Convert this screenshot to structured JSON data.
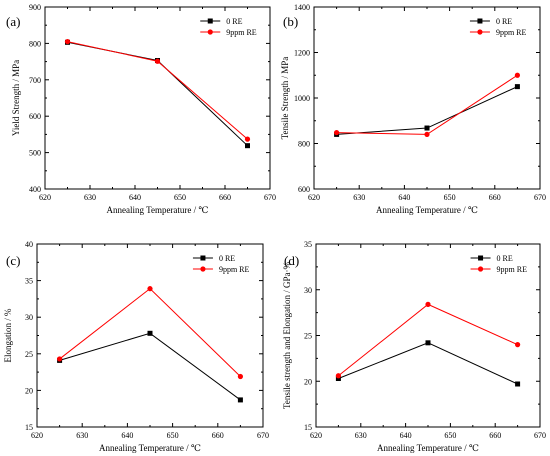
{
  "chart_data": [
    {
      "type": "line",
      "panel_label": "(a)",
      "xlabel": "Annealing Temperature / ℃",
      "ylabel": "Yield Strength / MPa",
      "xlim": [
        620,
        670
      ],
      "ylim": [
        400,
        900
      ],
      "xticks": [
        620,
        630,
        640,
        650,
        660,
        670
      ],
      "yticks": [
        400,
        500,
        600,
        700,
        800,
        900
      ],
      "legend_position": "top-right",
      "grid": false,
      "series": [
        {
          "name": "0 RE",
          "color": "#000000",
          "marker": "square",
          "x": [
            625,
            645,
            665
          ],
          "y": [
            803,
            753,
            519
          ]
        },
        {
          "name": "9ppm RE",
          "color": "#ff0000",
          "marker": "circle",
          "x": [
            625,
            645,
            665
          ],
          "y": [
            805,
            751,
            537
          ]
        }
      ]
    },
    {
      "type": "line",
      "panel_label": "(b)",
      "xlabel": "Annealing Temperature / ℃",
      "ylabel": "Tensile Strength / MPa",
      "xlim": [
        620,
        670
      ],
      "ylim": [
        600,
        1400
      ],
      "xticks": [
        620,
        630,
        640,
        650,
        660,
        670
      ],
      "yticks": [
        600,
        800,
        1000,
        1200,
        1400
      ],
      "legend_position": "top-right",
      "grid": false,
      "series": [
        {
          "name": "0 RE",
          "color": "#000000",
          "marker": "square",
          "x": [
            625,
            645,
            665
          ],
          "y": [
            840,
            868,
            1050
          ]
        },
        {
          "name": "9ppm RE",
          "color": "#ff0000",
          "marker": "circle",
          "x": [
            625,
            645,
            665
          ],
          "y": [
            848,
            840,
            1100
          ]
        }
      ]
    },
    {
      "type": "line",
      "panel_label": "(c)",
      "xlabel": "Annealing Temperature / ℃",
      "ylabel": "Elongation / %",
      "xlim": [
        620,
        670
      ],
      "ylim": [
        15,
        40
      ],
      "xticks": [
        620,
        630,
        640,
        650,
        660,
        670
      ],
      "yticks": [
        15,
        20,
        25,
        30,
        35,
        40
      ],
      "legend_position": "top-right",
      "grid": false,
      "series": [
        {
          "name": "0 RE",
          "color": "#000000",
          "marker": "square",
          "x": [
            625,
            645,
            665
          ],
          "y": [
            24.1,
            27.8,
            18.7
          ]
        },
        {
          "name": "9ppm RE",
          "color": "#ff0000",
          "marker": "circle",
          "x": [
            625,
            645,
            665
          ],
          "y": [
            24.3,
            33.9,
            21.9
          ]
        }
      ]
    },
    {
      "type": "line",
      "panel_label": "(d)",
      "xlabel": "Annealing Temperature / ℃",
      "ylabel": "Tensile strength and Elongation / GPa·%",
      "xlim": [
        620,
        670
      ],
      "ylim": [
        15,
        35
      ],
      "xticks": [
        620,
        630,
        640,
        650,
        660,
        670
      ],
      "yticks": [
        15,
        20,
        25,
        30,
        35
      ],
      "legend_position": "top-right",
      "grid": false,
      "series": [
        {
          "name": "0 RE",
          "color": "#000000",
          "marker": "square",
          "x": [
            625,
            645,
            665
          ],
          "y": [
            20.3,
            24.2,
            19.7
          ]
        },
        {
          "name": "9ppm RE",
          "color": "#ff0000",
          "marker": "circle",
          "x": [
            625,
            645,
            665
          ],
          "y": [
            20.6,
            28.4,
            24.0
          ]
        }
      ]
    }
  ]
}
